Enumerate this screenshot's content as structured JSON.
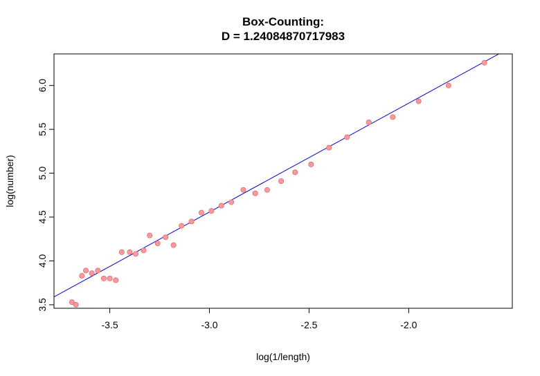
{
  "chart_data": {
    "type": "scatter",
    "title": "Box-Counting:",
    "subtitle": "D = 1.24084870717983",
    "xlabel": "log(1/length)",
    "ylabel": "log(number)",
    "xlim": [
      -3.78,
      -1.48
    ],
    "ylim": [
      3.46,
      6.36
    ],
    "x_ticks": [
      -3.5,
      -3.0,
      -2.5,
      -2.0
    ],
    "x_tick_labels": [
      "-3.5",
      "-3.0",
      "-2.5",
      "-2.0"
    ],
    "y_ticks": [
      3.5,
      4.0,
      4.5,
      5.0,
      5.5,
      6.0
    ],
    "y_tick_labels": [
      "3.5",
      "4.0",
      "4.5",
      "5.0",
      "5.5",
      "6.0"
    ],
    "grid": false,
    "series": [
      {
        "name": "points",
        "marker": "circle",
        "color": "#ff9999",
        "edge_color": "#e06c6c",
        "x": [
          -3.69,
          -3.67,
          -3.64,
          -3.62,
          -3.59,
          -3.56,
          -3.53,
          -3.5,
          -3.47,
          -3.44,
          -3.4,
          -3.37,
          -3.33,
          -3.3,
          -3.26,
          -3.22,
          -3.18,
          -3.14,
          -3.09,
          -3.04,
          -2.99,
          -2.94,
          -2.89,
          -2.83,
          -2.77,
          -2.71,
          -2.64,
          -2.57,
          -2.49,
          -2.4,
          -2.31,
          -2.2,
          -2.08,
          -1.95,
          -1.8,
          -1.62
        ],
        "y": [
          3.53,
          3.5,
          3.83,
          3.89,
          3.86,
          3.89,
          3.8,
          3.8,
          3.78,
          4.1,
          4.1,
          4.08,
          4.12,
          4.29,
          4.2,
          4.27,
          4.18,
          4.4,
          4.45,
          4.55,
          4.57,
          4.63,
          4.67,
          4.81,
          4.77,
          4.81,
          4.91,
          5.01,
          5.1,
          5.29,
          5.41,
          5.58,
          5.64,
          5.82,
          6.0,
          6.26
        ]
      },
      {
        "name": "fit",
        "type": "line",
        "color": "#0000ff",
        "slope": 1.24084870717983,
        "intercept": 8.28
      }
    ],
    "frame_color": "#000000"
  }
}
